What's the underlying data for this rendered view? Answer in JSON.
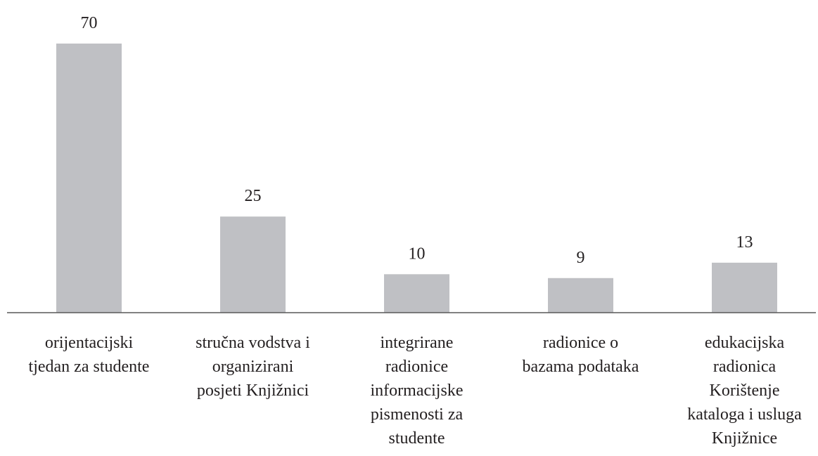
{
  "chart_data": {
    "type": "bar",
    "categories": [
      "orijentacijski\ntjedan za studente",
      "stručna vodstva i\norganizirani\nposjeti Knjižnici",
      "integrirane\nradionice\ninformacijske\npismenosti za\nstudente",
      "radionice o\nbazama podataka",
      "edukacijska\nradionica\nKorištenje\nkataloga i usluga\nKnjižnice"
    ],
    "values": [
      70,
      25,
      10,
      9,
      13
    ],
    "color": "#bfc0c4",
    "ylim": [
      0,
      70
    ]
  }
}
